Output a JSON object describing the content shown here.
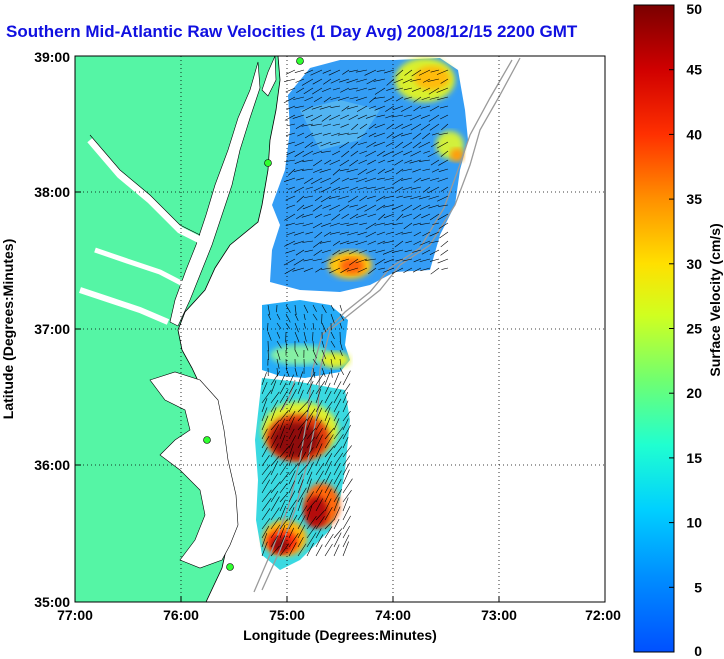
{
  "title": "Southern Mid-Atlantic Raw Velocities (1 Day Avg) 2008/12/15 2200 GMT",
  "xaxis": {
    "label": "Longitude (Degrees:Minutes)",
    "ticks": [
      "77:00",
      "76:00",
      "75:00",
      "74:00",
      "73:00",
      "72:00"
    ]
  },
  "yaxis": {
    "label": "Latitude (Degrees:Minutes)",
    "ticks": [
      "39:00",
      "38:00",
      "37:00",
      "36:00",
      "35:00"
    ]
  },
  "colorbar": {
    "label": "Surface Velocity (cm/s)",
    "ticks": [
      "50",
      "45",
      "40",
      "35",
      "30",
      "25",
      "20",
      "15",
      "10",
      "5",
      "0"
    ],
    "range": [
      0,
      50
    ]
  },
  "colors": {
    "land": "#55f5a5",
    "title": "#1010e0",
    "coast_outline": "#000000",
    "bathymetry": "#9a9a9a"
  },
  "map_extent": {
    "lon": [
      -77,
      -72
    ],
    "lat": [
      35,
      39
    ],
    "grid": true
  }
}
